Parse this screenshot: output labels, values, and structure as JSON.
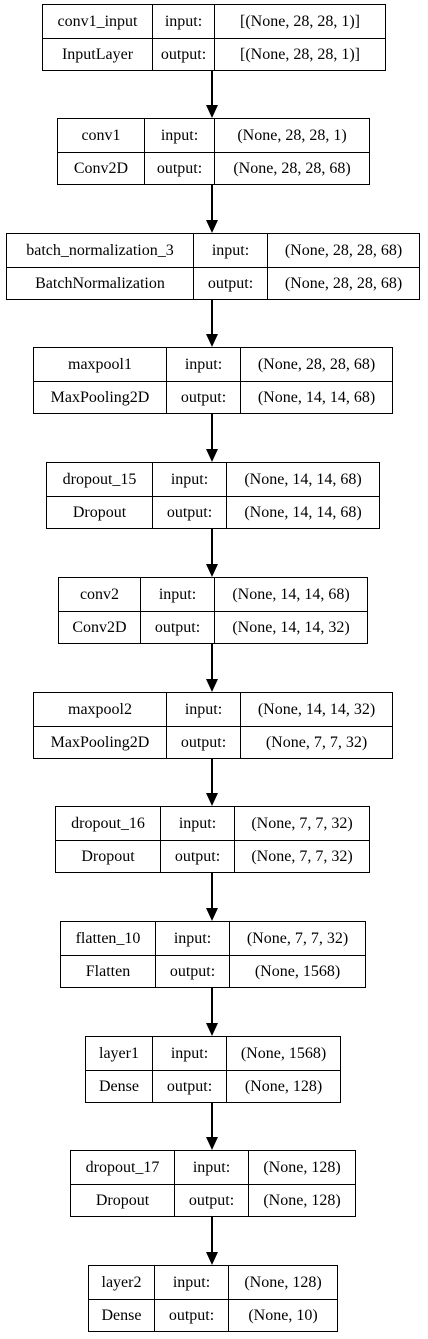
{
  "layers": [
    {
      "name": "conv1_input",
      "type": "InputLayer",
      "input_label": "input:",
      "output_label": "output:",
      "input": "[(None, 28, 28, 1)]",
      "output": "[(None, 28, 28, 1)]"
    },
    {
      "name": "conv1",
      "type": "Conv2D",
      "input_label": "input:",
      "output_label": "output:",
      "input": "(None, 28, 28, 1)",
      "output": "(None, 28, 28, 68)"
    },
    {
      "name": "batch_normalization_3",
      "type": "BatchNormalization",
      "input_label": "input:",
      "output_label": "output:",
      "input": "(None, 28, 28, 68)",
      "output": "(None, 28, 28, 68)"
    },
    {
      "name": "maxpool1",
      "type": "MaxPooling2D",
      "input_label": "input:",
      "output_label": "output:",
      "input": "(None, 28, 28, 68)",
      "output": "(None, 14, 14, 68)"
    },
    {
      "name": "dropout_15",
      "type": "Dropout",
      "input_label": "input:",
      "output_label": "output:",
      "input": "(None, 14, 14, 68)",
      "output": "(None, 14, 14, 68)"
    },
    {
      "name": "conv2",
      "type": "Conv2D",
      "input_label": "input:",
      "output_label": "output:",
      "input": "(None, 14, 14, 68)",
      "output": "(None, 14, 14, 32)"
    },
    {
      "name": "maxpool2",
      "type": "MaxPooling2D",
      "input_label": "input:",
      "output_label": "output:",
      "input": "(None, 14, 14, 32)",
      "output": "(None, 7, 7, 32)"
    },
    {
      "name": "dropout_16",
      "type": "Dropout",
      "input_label": "input:",
      "output_label": "output:",
      "input": "(None, 7, 7, 32)",
      "output": "(None, 7, 7, 32)"
    },
    {
      "name": "flatten_10",
      "type": "Flatten",
      "input_label": "input:",
      "output_label": "output:",
      "input": "(None, 7, 7, 32)",
      "output": "(None, 1568)"
    },
    {
      "name": "layer1",
      "type": "Dense",
      "input_label": "input:",
      "output_label": "output:",
      "input": "(None, 1568)",
      "output": "(None, 128)"
    },
    {
      "name": "dropout_17",
      "type": "Dropout",
      "input_label": "input:",
      "output_label": "output:",
      "input": "(None, 128)",
      "output": "(None, 128)"
    },
    {
      "name": "layer2",
      "type": "Dense",
      "input_label": "input:",
      "output_label": "output:",
      "input": "(None, 128)",
      "output": "(None, 10)"
    }
  ]
}
